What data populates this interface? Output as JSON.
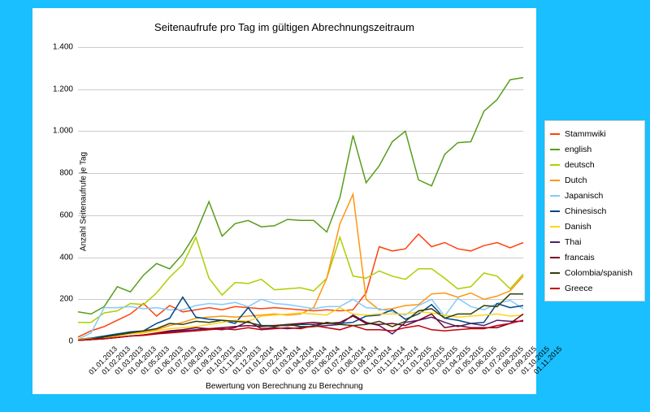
{
  "chart": {
    "type": "line",
    "title": "Seitenaufrufe pro Tag im gültigen Abrechnungszeitraum",
    "title_fontsize": 13,
    "xlabel": "Bewertung von Berechnung zu Berechnung",
    "ylabel": "Anzahl Seitenaufrufe je Tag",
    "label_fontsize": 10,
    "background_color": "#19bfff",
    "plot_background": "#ffffff",
    "grid_color": "#cccccc",
    "ylim": [
      0,
      1400
    ],
    "ytick_step": 200,
    "yticks": [
      0,
      200,
      400,
      600,
      800,
      1000,
      1200,
      1400
    ],
    "ytick_labels": [
      "0",
      "200",
      "400",
      "600",
      "800",
      "1.000",
      "1.200",
      "1.400"
    ],
    "categories": [
      "01.01.2013",
      "01.02.2013",
      "01.03.2013",
      "01.04.2013",
      "01.05.2013",
      "01.06.2013",
      "01.07.2013",
      "01.08.2013",
      "01.09.2013",
      "01.10.2013",
      "01.11.2013",
      "01.12.2013",
      "01.01.2014",
      "01.02.2014",
      "01.03.2014",
      "01.04.2014",
      "01.05.2014",
      "01.06.2014",
      "01.07.2014",
      "01.08.2014",
      "01.09.2014",
      "01.10.2014",
      "01.11.2014",
      "01.12.2014",
      "01.01.2015",
      "01.02.2015",
      "01.03.2015",
      "01.04.2015",
      "01.05.2015",
      "01.06.2015",
      "01.07.2015",
      "01.08.2015",
      "01.09.2015",
      "01.10.2015",
      "01.11.2015"
    ],
    "series": [
      {
        "name": "Stammwiki",
        "color": "#ff420e",
        "line_width": 1.5,
        "values": [
          20,
          50,
          70,
          100,
          130,
          180,
          120,
          170,
          140,
          150,
          160,
          150,
          165,
          160,
          155,
          160,
          155,
          150,
          145,
          150,
          145,
          150,
          230,
          450,
          430,
          440,
          510,
          450,
          470,
          440,
          430,
          455,
          470,
          445,
          470
        ]
      },
      {
        "name": "english",
        "color": "#579d1c",
        "line_width": 1.5,
        "values": [
          140,
          130,
          165,
          260,
          235,
          315,
          370,
          345,
          415,
          515,
          665,
          500,
          560,
          575,
          545,
          550,
          580,
          575,
          575,
          520,
          685,
          980,
          755,
          835,
          950,
          1000,
          768,
          740,
          890,
          945,
          950,
          1095,
          1150,
          1245,
          1255
        ]
      },
      {
        "name": "deutsch",
        "color": "#aecf00",
        "line_width": 1.5,
        "values": [
          90,
          90,
          135,
          145,
          180,
          175,
          230,
          305,
          365,
          495,
          300,
          220,
          280,
          275,
          295,
          245,
          250,
          255,
          240,
          300,
          495,
          310,
          300,
          335,
          310,
          295,
          345,
          345,
          300,
          250,
          260,
          325,
          310,
          250,
          320
        ]
      },
      {
        "name": "Dutch",
        "color": "#ff950e",
        "line_width": 1.5,
        "values": [
          10,
          15,
          20,
          25,
          40,
          45,
          55,
          75,
          90,
          110,
          115,
          120,
          115,
          120,
          125,
          130,
          125,
          130,
          160,
          300,
          560,
          700,
          200,
          150,
          155,
          170,
          175,
          225,
          230,
          210,
          230,
          200,
          215,
          240,
          310
        ]
      },
      {
        "name": "Japanisch",
        "color": "#83caff",
        "line_width": 1.5,
        "values": [
          10,
          40,
          160,
          160,
          165,
          155,
          160,
          150,
          150,
          170,
          180,
          175,
          185,
          165,
          200,
          180,
          175,
          165,
          155,
          165,
          165,
          200,
          160,
          155,
          140,
          125,
          170,
          200,
          120,
          205,
          165,
          150,
          180,
          195,
          155
        ]
      },
      {
        "name": "Chinesisch",
        "color": "#004586",
        "line_width": 1.5,
        "values": [
          10,
          15,
          25,
          35,
          45,
          50,
          85,
          110,
          210,
          115,
          105,
          100,
          85,
          160,
          75,
          75,
          75,
          80,
          80,
          85,
          85,
          90,
          120,
          125,
          150,
          105,
          130,
          175,
          110,
          100,
          85,
          90,
          180,
          160,
          170
        ]
      },
      {
        "name": "Danish",
        "color": "#ffd320",
        "line_width": 1.5,
        "values": [
          10,
          12,
          18,
          25,
          35,
          40,
          50,
          60,
          65,
          70,
          80,
          90,
          100,
          95,
          120,
          125,
          130,
          135,
          130,
          125,
          160,
          130,
          125,
          130,
          130,
          130,
          140,
          135,
          125,
          115,
          120,
          125,
          130,
          120,
          125
        ]
      },
      {
        "name": "Thai",
        "color": "#4b1f6f",
        "line_width": 1.5,
        "values": [
          5,
          8,
          12,
          18,
          25,
          30,
          35,
          45,
          50,
          55,
          60,
          55,
          65,
          95,
          60,
          65,
          60,
          65,
          70,
          75,
          80,
          125,
          90,
          75,
          35,
          90,
          100,
          115,
          90,
          70,
          85,
          75,
          100,
          95,
          95
        ]
      },
      {
        "name": "francais",
        "color": "#7e0021",
        "line_width": 1.5,
        "values": [
          5,
          8,
          12,
          18,
          25,
          30,
          40,
          50,
          55,
          65,
          60,
          65,
          70,
          75,
          70,
          75,
          80,
          85,
          90,
          85,
          90,
          120,
          85,
          80,
          85,
          75,
          100,
          130,
          65,
          75,
          65,
          65,
          65,
          85,
          130
        ]
      },
      {
        "name": "Colombia/spanish",
        "color": "#314004",
        "line_width": 1.5,
        "values": [
          5,
          10,
          20,
          30,
          40,
          50,
          60,
          85,
          80,
          95,
          90,
          100,
          95,
          90,
          75,
          70,
          80,
          70,
          70,
          90,
          80,
          75,
          80,
          95,
          70,
          95,
          145,
          155,
          110,
          130,
          130,
          170,
          165,
          225,
          225
        ]
      },
      {
        "name": "Greece",
        "color": "#c5000b",
        "line_width": 1.5,
        "values": [
          5,
          8,
          12,
          18,
          25,
          28,
          35,
          40,
          45,
          50,
          55,
          60,
          55,
          65,
          55,
          60,
          65,
          60,
          75,
          65,
          55,
          75,
          55,
          55,
          50,
          65,
          75,
          55,
          50,
          55,
          60,
          60,
          75,
          85,
          100
        ]
      }
    ]
  }
}
